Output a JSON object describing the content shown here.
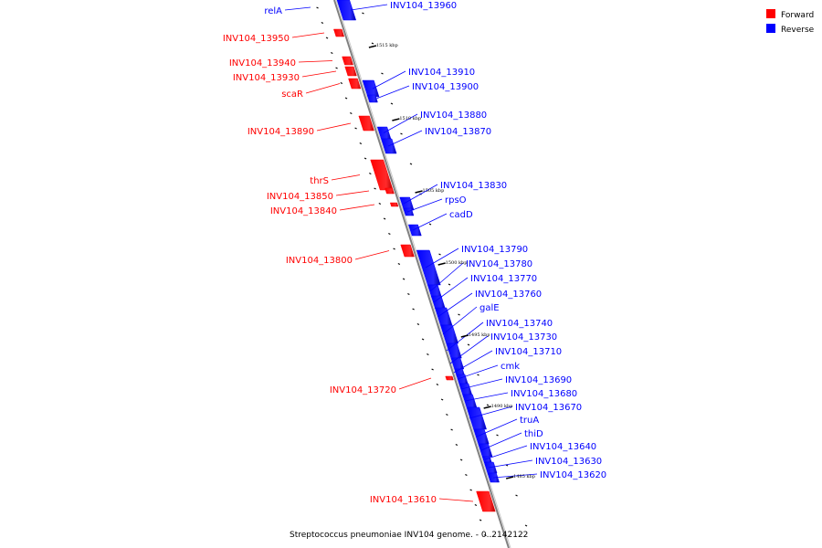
{
  "caption": "Streptococcus pneumoniae INV104 genome. - 0..2142122",
  "legend": [
    {
      "label": "Forward",
      "color": "#ff0000"
    },
    {
      "label": "Reverse",
      "color": "#0000ff"
    }
  ],
  "colors": {
    "forward": "#ff0000",
    "reverse": "#0000ff",
    "axis": "#808080"
  },
  "ticks": [
    "1515 kbp",
    "1510 kbp",
    "1505 kbp",
    "1500 kbp",
    "1495 kbp",
    "1490 kbp",
    "1485 kbp"
  ],
  "genes_forward": [
    "INV104_13950",
    "INV104_13940",
    "INV104_13930",
    "scaR",
    "INV104_13890",
    "thrS",
    "INV104_13850",
    "INV104_13840",
    "INV104_13800",
    "INV104_13720",
    "INV104_13610"
  ],
  "genes_reverse": [
    "relA",
    "INV104_13960",
    "INV104_13910",
    "INV104_13900",
    "INV104_13880",
    "INV104_13870",
    "INV104_13830",
    "rpsO",
    "cadD",
    "INV104_13790",
    "INV104_13780",
    "INV104_13770",
    "INV104_13760",
    "galE",
    "INV104_13740",
    "INV104_13730",
    "INV104_13710",
    "cmk",
    "INV104_13690",
    "INV104_13680",
    "INV104_13670",
    "truA",
    "thiD",
    "INV104_13640",
    "INV104_13630",
    "INV104_13620"
  ]
}
